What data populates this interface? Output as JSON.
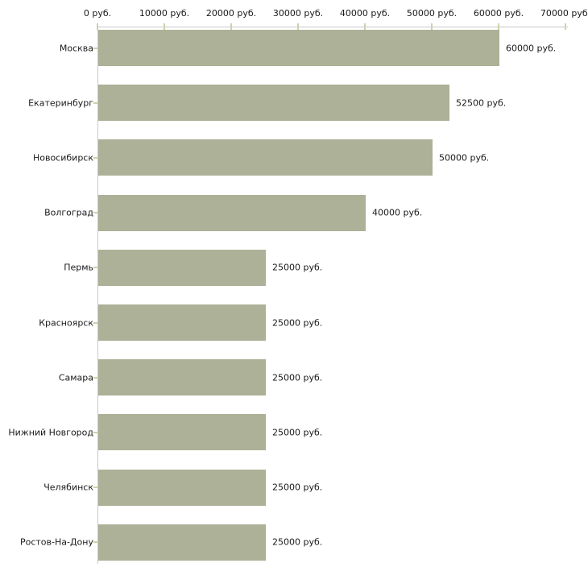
{
  "chart_data": {
    "type": "bar",
    "orientation": "horizontal",
    "title": "",
    "xlabel": "",
    "ylabel": "",
    "categories": [
      "Москва",
      "Екатеринбург",
      "Новосибирск",
      "Волгоград",
      "Пермь",
      "Красноярск",
      "Самара",
      "Нижний Новгород",
      "Челябинск",
      "Ростов-На-Дону"
    ],
    "values": [
      60000,
      52500,
      50000,
      40000,
      25000,
      25000,
      25000,
      25000,
      25000,
      25000
    ],
    "value_labels": [
      "60000 руб.",
      "52500 руб.",
      "50000 руб.",
      "40000 руб.",
      "25000 руб.",
      "25000 руб.",
      "25000 руб.",
      "25000 руб.",
      "25000 руб.",
      "25000 руб."
    ],
    "x_ticks": [
      0,
      10000,
      20000,
      30000,
      40000,
      50000,
      60000,
      70000
    ],
    "x_tick_labels": [
      "0 руб.",
      "10000 руб.",
      "20000 руб.",
      "30000 руб.",
      "40000 руб.",
      "50000 руб.",
      "60000 руб.",
      "70000 руб."
    ],
    "xlim": [
      0,
      70000
    ],
    "grid": false,
    "legend": false,
    "colors": {
      "bar_fill": "#acb197",
      "axis_line": "#c8c8c8",
      "tick_mark": "#cfcfad",
      "text": "#1a1a1a"
    }
  }
}
